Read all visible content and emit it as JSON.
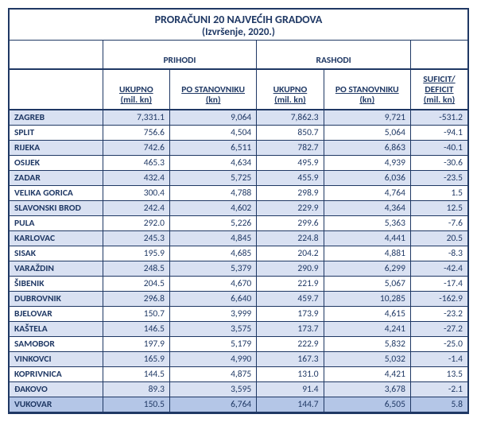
{
  "colors": {
    "border": "#1f3864",
    "text": "#1f3864",
    "band": "#d9e1f2",
    "highlight": "#b4c6e7",
    "background": "#ffffff"
  },
  "title": {
    "line1": "PRORAČUNI 20 NAJVEĆIH GRADOVA",
    "line2": "(Izvršenje, 2020.)"
  },
  "header": {
    "group_prihodi": "PRIHODI",
    "group_rashodi": "RASHODI",
    "ukupno": "UKUPNO",
    "ukupno_unit": "(mil. kn)",
    "po_stan": "PO STANOVNIKU",
    "po_stan_unit": "(kn)",
    "suficit_line1": "SUFICIT/",
    "suficit_line2": "DEFICIT",
    "suficit_unit": "(mil. kn)"
  },
  "rows": [
    {
      "city": "ZAGREB",
      "p_uk": "7,331.1",
      "p_ps": "9,064",
      "r_uk": "7,862.3",
      "r_ps": "9,721",
      "sd": "-531.2",
      "band": true
    },
    {
      "city": "SPLIT",
      "p_uk": "756.6",
      "p_ps": "4,504",
      "r_uk": "850.7",
      "r_ps": "5,064",
      "sd": "-94.1",
      "band": false
    },
    {
      "city": "RIJEKA",
      "p_uk": "742.6",
      "p_ps": "6,511",
      "r_uk": "782.7",
      "r_ps": "6,863",
      "sd": "-40.1",
      "band": true
    },
    {
      "city": "OSIJEK",
      "p_uk": "465.3",
      "p_ps": "4,634",
      "r_uk": "495.9",
      "r_ps": "4,939",
      "sd": "-30.6",
      "band": false
    },
    {
      "city": "ZADAR",
      "p_uk": "432.4",
      "p_ps": "5,725",
      "r_uk": "455.9",
      "r_ps": "6,036",
      "sd": "-23.5",
      "band": true
    },
    {
      "city": "VELIKA GORICA",
      "p_uk": "300.4",
      "p_ps": "4,788",
      "r_uk": "298.9",
      "r_ps": "4,764",
      "sd": "1.5",
      "band": false
    },
    {
      "city": "SLAVONSKI BROD",
      "p_uk": "242.4",
      "p_ps": "4,602",
      "r_uk": "229.9",
      "r_ps": "4,364",
      "sd": "12.5",
      "band": true
    },
    {
      "city": "PULA",
      "p_uk": "292.0",
      "p_ps": "5,226",
      "r_uk": "299.6",
      "r_ps": "5,363",
      "sd": "-7.6",
      "band": false
    },
    {
      "city": "KARLOVAC",
      "p_uk": "245.3",
      "p_ps": "4,845",
      "r_uk": "224.8",
      "r_ps": "4,441",
      "sd": "20.5",
      "band": true
    },
    {
      "city": "SISAK",
      "p_uk": "195.9",
      "p_ps": "4,685",
      "r_uk": "204.2",
      "r_ps": "4,881",
      "sd": "-8.3",
      "band": false
    },
    {
      "city": "VARAŽDIN",
      "p_uk": "248.5",
      "p_ps": "5,379",
      "r_uk": "290.9",
      "r_ps": "6,299",
      "sd": "-42.4",
      "band": true
    },
    {
      "city": "ŠIBENIK",
      "p_uk": "204.5",
      "p_ps": "4,670",
      "r_uk": "221.9",
      "r_ps": "5,067",
      "sd": "-17.4",
      "band": false
    },
    {
      "city": "DUBROVNIK",
      "p_uk": "296.8",
      "p_ps": "6,640",
      "r_uk": "459.7",
      "r_ps": "10,285",
      "sd": "-162.9",
      "band": true
    },
    {
      "city": "BJELOVAR",
      "p_uk": "150.7",
      "p_ps": "3,999",
      "r_uk": "173.9",
      "r_ps": "4,615",
      "sd": "-23.2",
      "band": false
    },
    {
      "city": "KAŠTELA",
      "p_uk": "146.5",
      "p_ps": "3,575",
      "r_uk": "173.7",
      "r_ps": "4,241",
      "sd": "-27.2",
      "band": true
    },
    {
      "city": "SAMOBOR",
      "p_uk": "197.9",
      "p_ps": "5,179",
      "r_uk": "222.9",
      "r_ps": "5,832",
      "sd": "-25.0",
      "band": false
    },
    {
      "city": "VINKOVCI",
      "p_uk": "165.9",
      "p_ps": "4,990",
      "r_uk": "167.3",
      "r_ps": "5,032",
      "sd": "-1.4",
      "band": true
    },
    {
      "city": "KOPRIVNICA",
      "p_uk": "144.5",
      "p_ps": "4,875",
      "r_uk": "131.0",
      "r_ps": "4,421",
      "sd": "13.5",
      "band": false
    },
    {
      "city": "ĐAKOVO",
      "p_uk": "89.3",
      "p_ps": "3,595",
      "r_uk": "91.4",
      "r_ps": "3,678",
      "sd": "-2.1",
      "band": true
    },
    {
      "city": "VUKOVAR",
      "p_uk": "150.5",
      "p_ps": "6,764",
      "r_uk": "144.7",
      "r_ps": "6,505",
      "sd": "5.8",
      "highlight": true
    }
  ]
}
